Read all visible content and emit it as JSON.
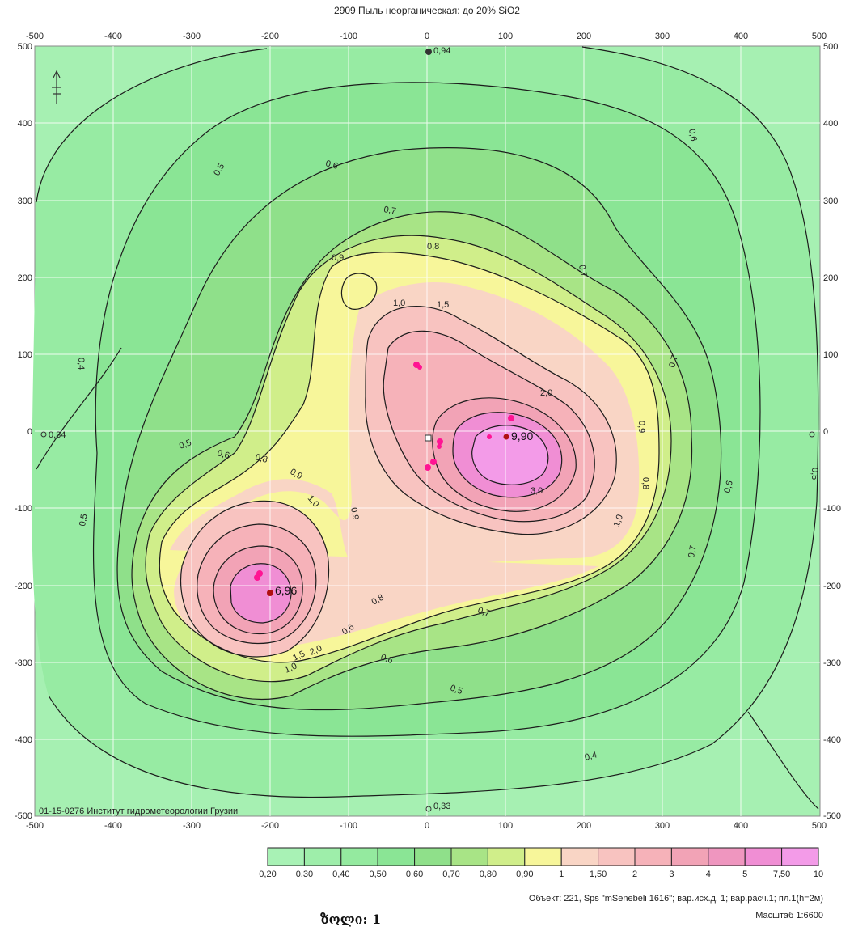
{
  "title": "2909 Пыль неорганическая: до 20% SiO2",
  "institute_label": "01-15-0276 Институт гидрометеорологии Грузии",
  "object_info": "Объект: 221, Sps \"mSenebeli 1616\"; вар.исх.д. 1; вар.расч.1; пл.1(h=2м)",
  "scale_info": "Масштаб 1:6600",
  "caption": "ზოლი: 1",
  "axes": {
    "x_ticks": [
      "-500",
      "-400",
      "-300",
      "-200",
      "-100",
      "0",
      "100",
      "200",
      "300",
      "400",
      "500"
    ],
    "y_ticks": [
      "500",
      "400",
      "300",
      "200",
      "100",
      "0",
      "-100",
      "-200",
      "-300",
      "-400",
      "-500"
    ]
  },
  "legend": {
    "items": [
      {
        "label": "0,20",
        "color": "#a8f2b5"
      },
      {
        "label": "0,30",
        "color": "#9eeeaa"
      },
      {
        "label": "0,40",
        "color": "#94ea9f"
      },
      {
        "label": "0,50",
        "color": "#8ae595"
      },
      {
        "label": "0,60",
        "color": "#8fe08a"
      },
      {
        "label": "0,70",
        "color": "#a8e486"
      },
      {
        "label": "0,80",
        "color": "#d0ee8a"
      },
      {
        "label": "0,90",
        "color": "#f7f69a"
      },
      {
        "label": "1",
        "color": "#f9d5c5"
      },
      {
        "label": "1,50",
        "color": "#f8c3c0"
      },
      {
        "label": "2",
        "color": "#f6b2b9"
      },
      {
        "label": "3",
        "color": "#f2a3b6"
      },
      {
        "label": "4",
        "color": "#ef96bf"
      },
      {
        "label": "5",
        "color": "#f08ed4"
      },
      {
        "label": "7,50",
        "color": "#f39be8"
      },
      {
        "label": "10",
        "color": ""
      }
    ]
  },
  "contour_labels": [
    "0,5",
    "0,6",
    "0,4",
    "0,7",
    "0,9",
    "0,8",
    "1,0",
    "1,5",
    "2,0",
    "3,0",
    "0,6",
    "0,7",
    "0,5",
    "0,6",
    "0,7",
    "0,8",
    "0,9",
    "1,0",
    "0,5",
    "0,6",
    "0,9",
    "0,8",
    "0,7",
    "0,6",
    "0,5",
    "0,4",
    "0,5",
    "0,6",
    "0,7",
    "0,8",
    "1,0",
    "0,9",
    "1,0",
    "1,5",
    "2,0"
  ],
  "point_labels": {
    "max_right": "9,90",
    "max_left": "6,96",
    "west": "0,34",
    "south": "0,33",
    "north": "0,94"
  },
  "colors": {
    "background": "#a6f0b2",
    "isoline": "#1c1c1c",
    "grid": "#ffffff",
    "source_marker": "#ff1493",
    "maximum_marker": "#b01010"
  },
  "north_icon": "north-arrow-icon"
}
